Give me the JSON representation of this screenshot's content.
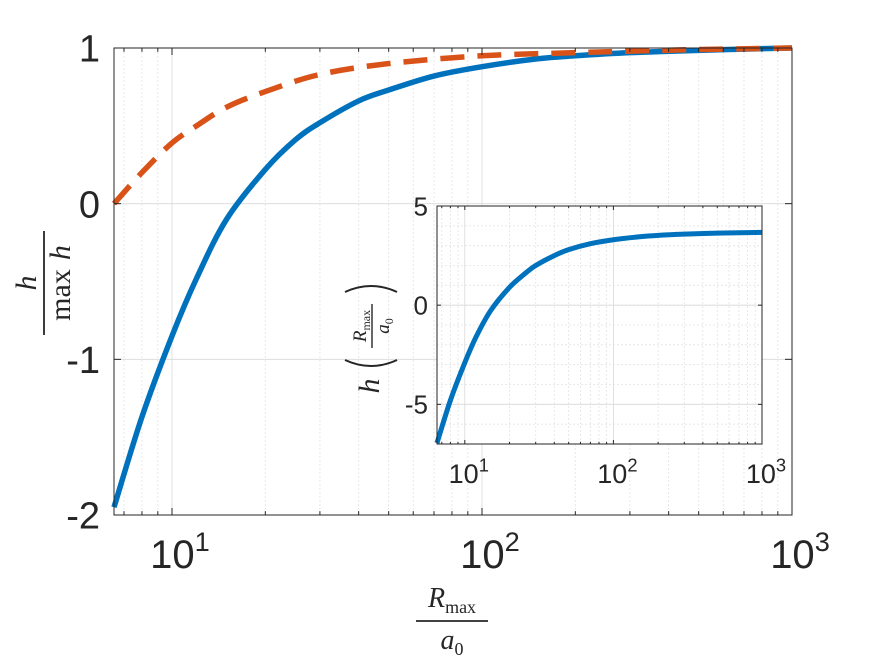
{
  "chart_data": [
    {
      "type": "line",
      "x_scale": "log",
      "xlim": [
        6.5,
        1000
      ],
      "ylim": [
        -2,
        1
      ],
      "grid": true,
      "x_ticks": [
        {
          "value": 10,
          "base": "10",
          "exp": "1"
        },
        {
          "value": 100,
          "base": "10",
          "exp": "2"
        },
        {
          "value": 1000,
          "base": "10",
          "exp": "3"
        }
      ],
      "y_ticks": [
        {
          "value": 1,
          "label": "1"
        },
        {
          "value": 0,
          "label": "0"
        },
        {
          "value": -1,
          "label": "-1"
        },
        {
          "value": -2,
          "label": "-2"
        }
      ],
      "xlabel": {
        "num": "R",
        "num_sub": "max",
        "den": "a",
        "den_sub": "0"
      },
      "ylabel": {
        "num": "h",
        "den_op": "max",
        "den_var": "h"
      },
      "series": [
        {
          "color": "#0072BD",
          "style": "solid",
          "x": [
            6.5,
            8,
            10,
            12,
            15,
            20,
            25,
            30,
            40,
            50,
            70,
            100,
            150,
            200,
            300,
            500,
            700,
            1000
          ],
          "y": [
            -1.95,
            -1.37,
            -0.85,
            -0.48,
            -0.1,
            0.22,
            0.41,
            0.52,
            0.66,
            0.73,
            0.82,
            0.88,
            0.93,
            0.95,
            0.97,
            0.985,
            0.993,
            1.0
          ]
        },
        {
          "color": "#D95319",
          "style": "dashed",
          "x": [
            6.5,
            8,
            10,
            12,
            15,
            20,
            30,
            50,
            100,
            200,
            300,
            500,
            1000
          ],
          "y": [
            0.0,
            0.2,
            0.39,
            0.5,
            0.62,
            0.72,
            0.83,
            0.9,
            0.95,
            0.97,
            0.98,
            0.99,
            1.0
          ]
        }
      ]
    },
    {
      "type": "line",
      "x_scale": "log",
      "xlim": [
        6.5,
        1000
      ],
      "ylim": [
        -7,
        5
      ],
      "grid": true,
      "x_ticks": [
        {
          "value": 10,
          "base": "10",
          "exp": "1"
        },
        {
          "value": 100,
          "base": "10",
          "exp": "2"
        },
        {
          "value": 1000,
          "base": "10",
          "exp": "3"
        }
      ],
      "y_ticks": [
        {
          "value": 5,
          "label": "5"
        },
        {
          "value": 0,
          "label": "0"
        },
        {
          "value": -5,
          "label": "-5"
        }
      ],
      "ylabel": {
        "func": "h",
        "num": "R",
        "num_sub": "max",
        "den": "a",
        "den_sub": "0"
      },
      "series": [
        {
          "color": "#0072BD",
          "style": "solid",
          "x": [
            6.5,
            8,
            10,
            12,
            15,
            20,
            25,
            30,
            40,
            50,
            70,
            100,
            150,
            200,
            300,
            500,
            700,
            1000
          ],
          "y": [
            -6.95,
            -4.8,
            -2.9,
            -1.55,
            -0.25,
            0.9,
            1.55,
            2.0,
            2.5,
            2.8,
            3.1,
            3.3,
            3.45,
            3.52,
            3.58,
            3.63,
            3.65,
            3.67
          ]
        }
      ]
    }
  ]
}
